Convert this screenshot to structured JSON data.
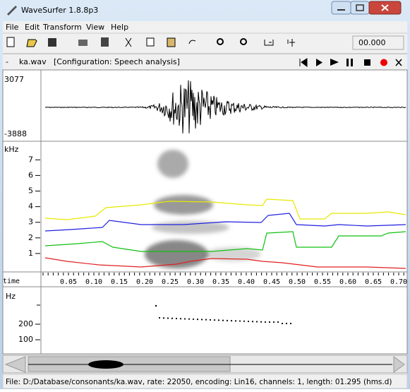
{
  "window": {
    "title": "WaveSurfer 1.8.8p3"
  },
  "menu": [
    "File",
    "Edit",
    "Transform",
    "View",
    "Help"
  ],
  "toolbar": {
    "time": "00.000"
  },
  "pane": {
    "toggle": "-",
    "file": "ka.wav",
    "config": "[Configuration: Speech analysis]"
  },
  "waveform": {
    "max": "3077",
    "min": "-3888"
  },
  "spectrogram": {
    "unit": "kHz",
    "ticks": [
      7,
      6,
      5,
      4,
      3,
      2,
      1
    ]
  },
  "time_axis": {
    "label": "time",
    "ticks": [
      "0.05",
      "0.10",
      "0.15",
      "0.20",
      "0.25",
      "0.30",
      "0.35",
      "0.40",
      "0.45",
      "0.50",
      "0.55",
      "0.60",
      "0.65",
      "0.70"
    ]
  },
  "pitch": {
    "unit": "Hz",
    "ticks": [
      200,
      100
    ]
  },
  "status": "File: D:/Database/consonants/ka.wav, rate: 22050, encoding: Lin16, channels: 1, length: 01.295 (hms.d)"
}
